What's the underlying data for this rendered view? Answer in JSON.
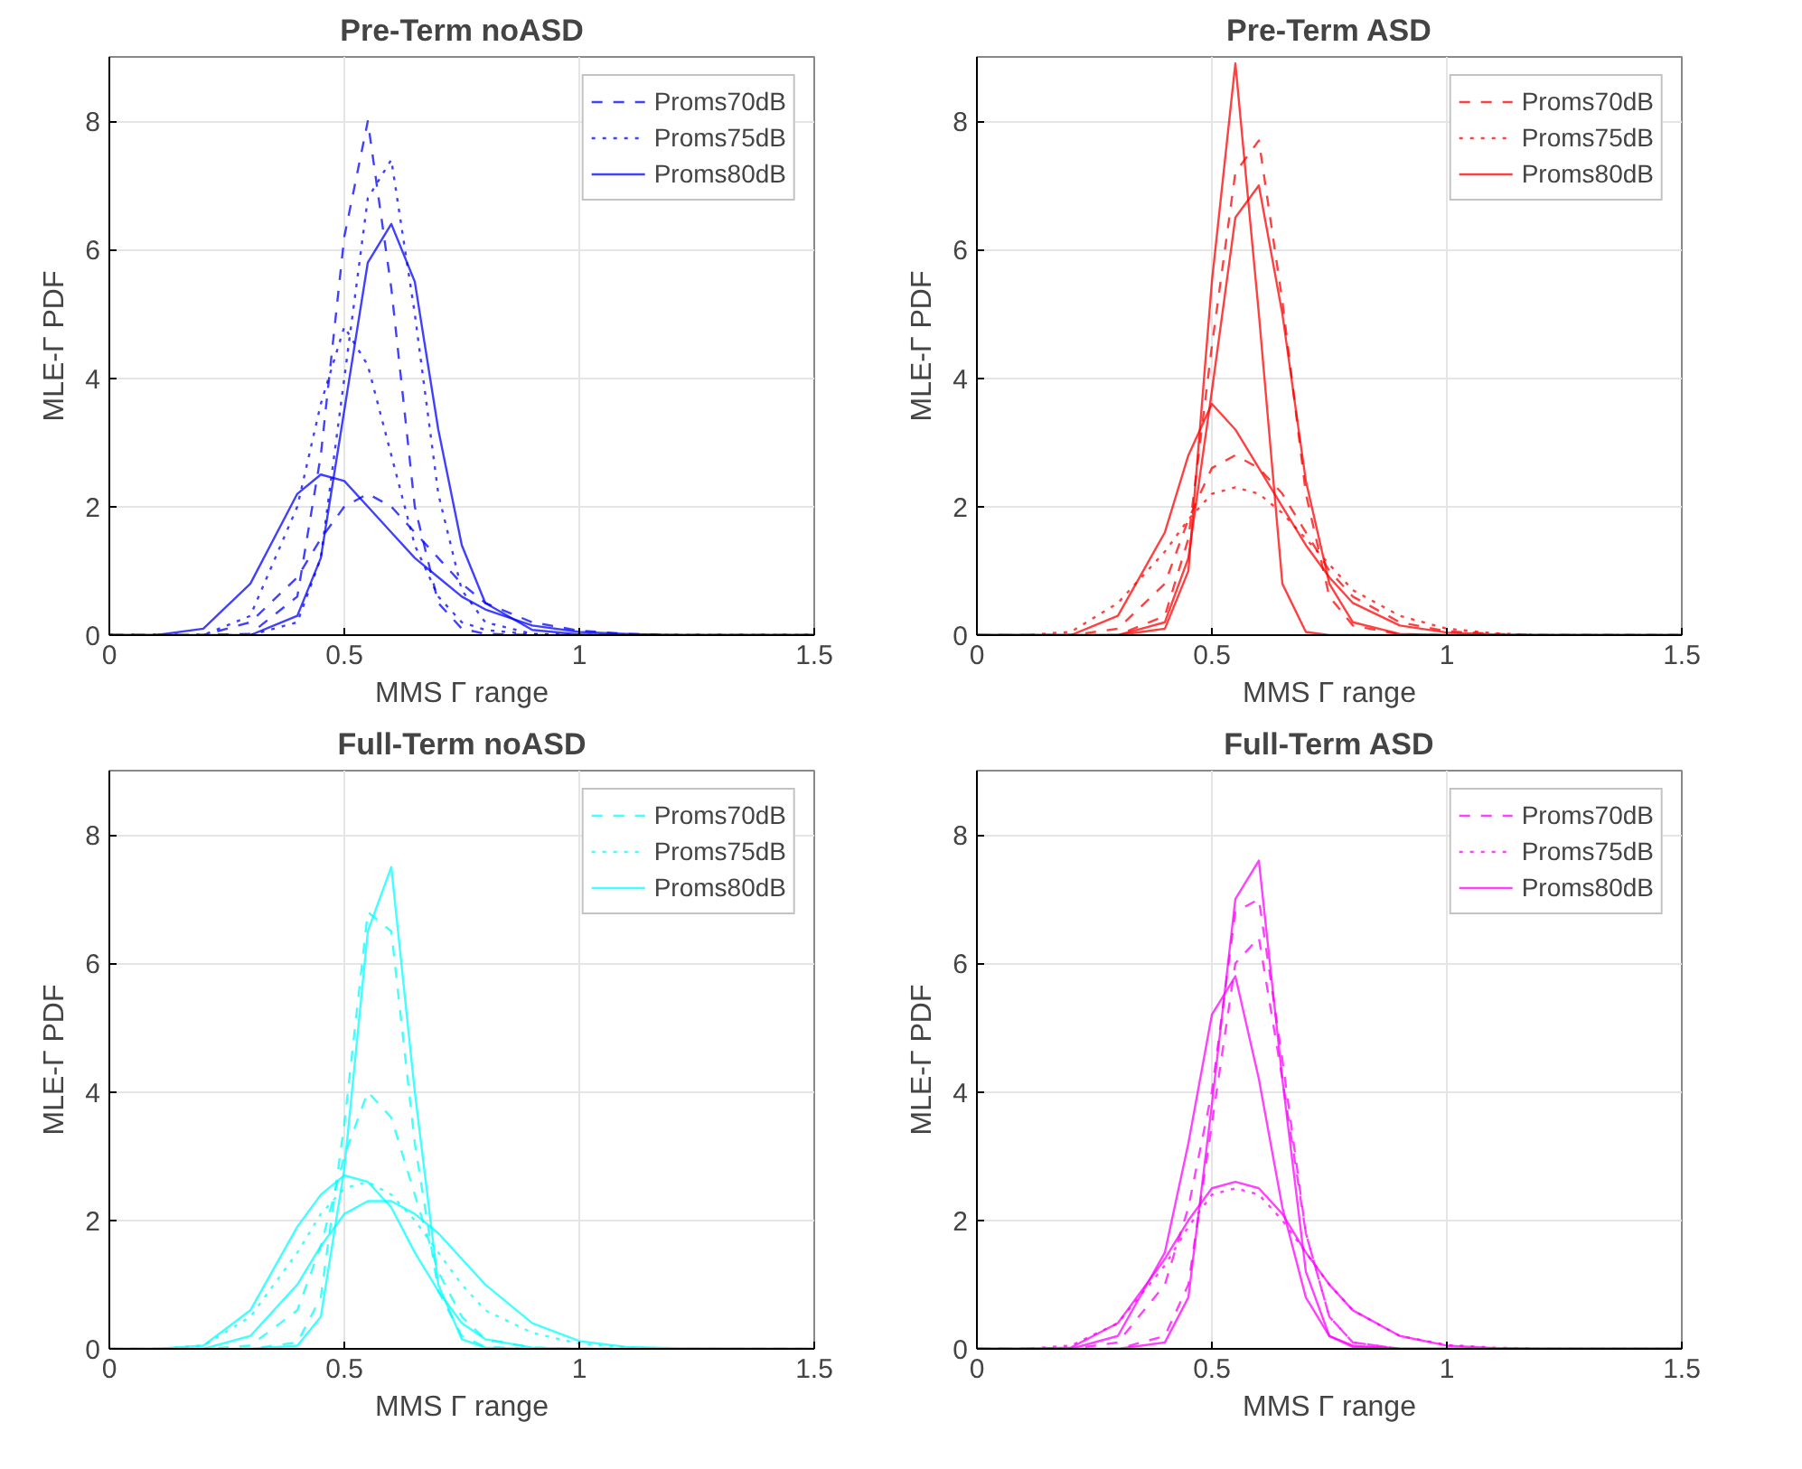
{
  "chart_data": [
    {
      "type": "line",
      "title": "Pre-Term noASD",
      "xlabel": "MMS Γ range",
      "ylabel": "MLE-Γ PDF",
      "x": [
        0,
        0.1,
        0.2,
        0.3,
        0.4,
        0.45,
        0.5,
        0.55,
        0.6,
        0.65,
        0.7,
        0.75,
        0.8,
        0.9,
        1.0,
        1.1,
        1.2,
        1.5
      ],
      "xlim": [
        0,
        1.5
      ],
      "ylim": [
        0,
        9
      ],
      "xticks": [
        0,
        0.5,
        1,
        1.5
      ],
      "yticks": [
        0,
        2,
        4,
        6,
        8
      ],
      "grid": true,
      "legend": "top right",
      "series": [
        {
          "name": "Proms70dB",
          "color": "#0000ff",
          "line_style": "dashed",
          "values": [
            0,
            0,
            0,
            0.02,
            0.6,
            2.8,
            6.2,
            8.0,
            5.4,
            2.0,
            0.5,
            0.1,
            0.02,
            0,
            0,
            0,
            0,
            0
          ]
        },
        {
          "name": "Proms75dB",
          "color": "#0000ff",
          "line_style": "dotted",
          "values": [
            0,
            0,
            0,
            0,
            0.2,
            1.2,
            4.0,
            6.8,
            7.4,
            5.0,
            2.2,
            0.7,
            0.2,
            0.02,
            0,
            0,
            0,
            0
          ]
        },
        {
          "name": "Proms80dB",
          "color": "#0000ff",
          "line_style": "solid",
          "values": [
            0,
            0,
            0.1,
            0.8,
            2.2,
            2.5,
            2.4,
            2.0,
            1.6,
            1.2,
            0.9,
            0.6,
            0.4,
            0.15,
            0.05,
            0.02,
            0,
            0
          ]
        },
        {
          "color": "#0000ff",
          "line_style": "solid",
          "values": [
            0,
            0,
            0,
            0,
            0.3,
            1.2,
            3.5,
            5.8,
            6.4,
            5.5,
            3.2,
            1.4,
            0.5,
            0.08,
            0.01,
            0,
            0,
            0
          ]
        },
        {
          "color": "#0000ff",
          "line_style": "dashed",
          "values": [
            0,
            0,
            0,
            0.2,
            0.9,
            1.5,
            2.0,
            2.2,
            2.0,
            1.6,
            1.2,
            0.8,
            0.5,
            0.2,
            0.07,
            0.02,
            0,
            0
          ]
        },
        {
          "color": "#0000ff",
          "line_style": "dotted",
          "values": [
            0,
            0,
            0,
            0.3,
            2.0,
            3.6,
            4.8,
            4.2,
            2.8,
            1.4,
            0.6,
            0.2,
            0.08,
            0.01,
            0,
            0,
            0,
            0
          ]
        }
      ]
    },
    {
      "type": "line",
      "title": "Pre-Term ASD",
      "xlabel": "MMS Γ range",
      "ylabel": "MLE-Γ PDF",
      "x": [
        0,
        0.1,
        0.2,
        0.3,
        0.4,
        0.45,
        0.5,
        0.55,
        0.6,
        0.65,
        0.7,
        0.75,
        0.8,
        0.9,
        1.0,
        1.1,
        1.2,
        1.5
      ],
      "xlim": [
        0,
        1.5
      ],
      "ylim": [
        0,
        9
      ],
      "xticks": [
        0,
        0.5,
        1,
        1.5
      ],
      "yticks": [
        0,
        2,
        4,
        6,
        8
      ],
      "grid": true,
      "legend": "top right",
      "series": [
        {
          "name": "Proms70dB",
          "color": "#ff0000",
          "line_style": "dashed",
          "values": [
            0,
            0,
            0,
            0,
            0.3,
            1.5,
            4.5,
            7.2,
            7.7,
            5.2,
            2.2,
            0.6,
            0.15,
            0.01,
            0,
            0,
            0,
            0
          ]
        },
        {
          "name": "Proms75dB",
          "color": "#ff0000",
          "line_style": "dotted",
          "values": [
            0,
            0,
            0.05,
            0.5,
            1.3,
            1.8,
            2.2,
            2.3,
            2.2,
            1.9,
            1.5,
            1.1,
            0.7,
            0.3,
            0.1,
            0.03,
            0,
            0
          ]
        },
        {
          "name": "Proms80dB",
          "color": "#ff0000",
          "line_style": "solid",
          "values": [
            0,
            0,
            0,
            0,
            0.1,
            1.0,
            5.5,
            8.9,
            5.0,
            0.8,
            0.05,
            0,
            0,
            0,
            0,
            0,
            0,
            0
          ]
        },
        {
          "color": "#ff0000",
          "line_style": "solid",
          "values": [
            0,
            0,
            0,
            0.3,
            1.6,
            2.8,
            3.6,
            3.2,
            2.6,
            2.0,
            1.4,
            0.9,
            0.5,
            0.15,
            0.04,
            0.01,
            0,
            0
          ]
        },
        {
          "color": "#ff0000",
          "line_style": "solid",
          "values": [
            0,
            0,
            0,
            0,
            0.2,
            1.2,
            3.8,
            6.5,
            7.0,
            5.0,
            2.4,
            0.8,
            0.2,
            0.02,
            0,
            0,
            0,
            0
          ]
        },
        {
          "color": "#ff0000",
          "line_style": "dashed",
          "values": [
            0,
            0,
            0,
            0.1,
            0.8,
            1.8,
            2.6,
            2.8,
            2.6,
            2.2,
            1.6,
            1.0,
            0.6,
            0.2,
            0.06,
            0.02,
            0,
            0
          ]
        }
      ]
    },
    {
      "type": "line",
      "title": "Full-Term noASD",
      "xlabel": "MMS Γ range",
      "ylabel": "MLE-Γ PDF",
      "x": [
        0,
        0.1,
        0.2,
        0.3,
        0.4,
        0.45,
        0.5,
        0.55,
        0.6,
        0.65,
        0.7,
        0.75,
        0.8,
        0.9,
        1.0,
        1.1,
        1.2,
        1.5
      ],
      "xlim": [
        0,
        1.5
      ],
      "ylim": [
        0,
        9
      ],
      "xticks": [
        0,
        0.5,
        1,
        1.5
      ],
      "yticks": [
        0,
        2,
        4,
        6,
        8
      ],
      "grid": true,
      "legend": "top right",
      "series": [
        {
          "name": "Proms70dB",
          "color": "#00ffff",
          "line_style": "dashed",
          "values": [
            0,
            0,
            0,
            0,
            0.1,
            0.8,
            3.5,
            6.8,
            6.5,
            3.2,
            0.9,
            0.2,
            0.03,
            0,
            0,
            0,
            0,
            0
          ]
        },
        {
          "name": "Proms75dB",
          "color": "#00ffff",
          "line_style": "dotted",
          "values": [
            0,
            0,
            0.05,
            0.5,
            1.5,
            2.1,
            2.5,
            2.6,
            2.4,
            2.0,
            1.5,
            1.0,
            0.6,
            0.25,
            0.08,
            0.02,
            0,
            0
          ]
        },
        {
          "name": "Proms80dB",
          "color": "#00ffff",
          "line_style": "solid",
          "values": [
            0,
            0,
            0,
            0,
            0.05,
            0.5,
            2.8,
            6.5,
            7.5,
            4.0,
            1.0,
            0.15,
            0.02,
            0,
            0,
            0,
            0,
            0
          ]
        },
        {
          "color": "#00ffff",
          "line_style": "solid",
          "values": [
            0,
            0,
            0.05,
            0.6,
            1.9,
            2.4,
            2.7,
            2.6,
            2.2,
            1.5,
            0.9,
            0.4,
            0.15,
            0.02,
            0,
            0,
            0,
            0
          ]
        },
        {
          "color": "#00ffff",
          "line_style": "solid",
          "values": [
            0,
            0,
            0,
            0.2,
            1.0,
            1.6,
            2.1,
            2.3,
            2.3,
            2.1,
            1.8,
            1.4,
            1.0,
            0.4,
            0.12,
            0.03,
            0.01,
            0
          ]
        },
        {
          "color": "#00ffff",
          "line_style": "dashed",
          "values": [
            0,
            0,
            0,
            0.05,
            0.6,
            1.6,
            3.0,
            4.0,
            3.6,
            2.4,
            1.2,
            0.5,
            0.15,
            0.02,
            0,
            0,
            0,
            0
          ]
        }
      ]
    },
    {
      "type": "line",
      "title": "Full-Term ASD",
      "xlabel": "MMS Γ range",
      "ylabel": "MLE-Γ PDF",
      "x": [
        0,
        0.1,
        0.2,
        0.3,
        0.4,
        0.45,
        0.5,
        0.55,
        0.6,
        0.65,
        0.7,
        0.75,
        0.8,
        0.9,
        1.0,
        1.1,
        1.2,
        1.5
      ],
      "xlim": [
        0,
        1.5
      ],
      "ylim": [
        0,
        9
      ],
      "xticks": [
        0,
        0.5,
        1,
        1.5
      ],
      "yticks": [
        0,
        2,
        4,
        6,
        8
      ],
      "grid": true,
      "legend": "top right",
      "series": [
        {
          "name": "Proms70dB",
          "color": "#ff00ff",
          "line_style": "dashed",
          "values": [
            0,
            0,
            0,
            0,
            0.2,
            1.0,
            3.5,
            6.0,
            6.4,
            4.2,
            1.8,
            0.5,
            0.1,
            0,
            0,
            0,
            0,
            0
          ]
        },
        {
          "name": "Proms75dB",
          "color": "#ff00ff",
          "line_style": "dotted",
          "values": [
            0,
            0,
            0.05,
            0.4,
            1.3,
            1.9,
            2.4,
            2.5,
            2.4,
            2.0,
            1.5,
            1.0,
            0.6,
            0.2,
            0.06,
            0.02,
            0,
            0
          ]
        },
        {
          "name": "Proms80dB",
          "color": "#ff00ff",
          "line_style": "solid",
          "values": [
            0,
            0,
            0,
            0,
            0.1,
            0.8,
            3.8,
            7.0,
            7.6,
            4.2,
            1.2,
            0.2,
            0.03,
            0,
            0,
            0,
            0,
            0
          ]
        },
        {
          "color": "#ff00ff",
          "line_style": "solid",
          "values": [
            0,
            0,
            0,
            0.2,
            1.5,
            3.2,
            5.2,
            5.8,
            4.2,
            2.2,
            0.8,
            0.2,
            0.05,
            0,
            0,
            0,
            0,
            0
          ]
        },
        {
          "color": "#ff00ff",
          "line_style": "solid",
          "values": [
            0,
            0,
            0.02,
            0.4,
            1.4,
            2.0,
            2.5,
            2.6,
            2.5,
            2.1,
            1.5,
            1.0,
            0.6,
            0.2,
            0.05,
            0.01,
            0,
            0
          ]
        },
        {
          "color": "#ff00ff",
          "line_style": "dashed",
          "values": [
            0,
            0,
            0,
            0.1,
            1.0,
            2.2,
            4.0,
            6.8,
            7.0,
            4.5,
            1.8,
            0.5,
            0.1,
            0,
            0,
            0,
            0,
            0
          ]
        }
      ]
    }
  ]
}
